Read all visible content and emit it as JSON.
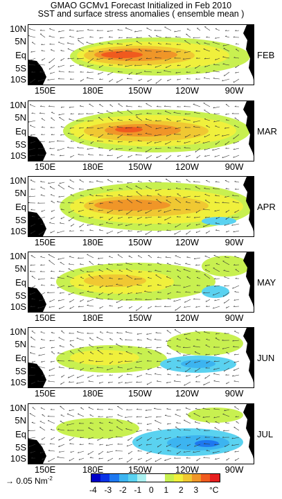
{
  "title_line1": "GMAO GCMv1 Forecast Initialized in Feb 2010",
  "title_line2": "SST and surface stress anomalies ( ensemble mean )",
  "lat_labels": [
    "10N",
    "5N",
    "Eq",
    "5S",
    "10S"
  ],
  "lon_labels": [
    "150E",
    "180E",
    "150W",
    "120W",
    "90W"
  ],
  "panels": [
    {
      "month": "FEB"
    },
    {
      "month": "MAR"
    },
    {
      "month": "APR"
    },
    {
      "month": "MAY"
    },
    {
      "month": "JUN"
    },
    {
      "month": "JUL"
    }
  ],
  "legend": {
    "vector_scale": "0.05 Nm",
    "vector_scale_exp": "-2",
    "ticks": [
      "-4",
      "-3",
      "-2",
      "-1",
      "0",
      "1",
      "2",
      "3"
    ],
    "unit": "°C",
    "colors": [
      "#0000c8",
      "#0a32e6",
      "#1e78f0",
      "#3cb4f0",
      "#5ad2f0",
      "#aaf0f0",
      "#ffffff",
      "#ffffff",
      "#c8f050",
      "#f0f03c",
      "#f0c832",
      "#f09628",
      "#f05a1e",
      "#e61e1e"
    ]
  }
}
